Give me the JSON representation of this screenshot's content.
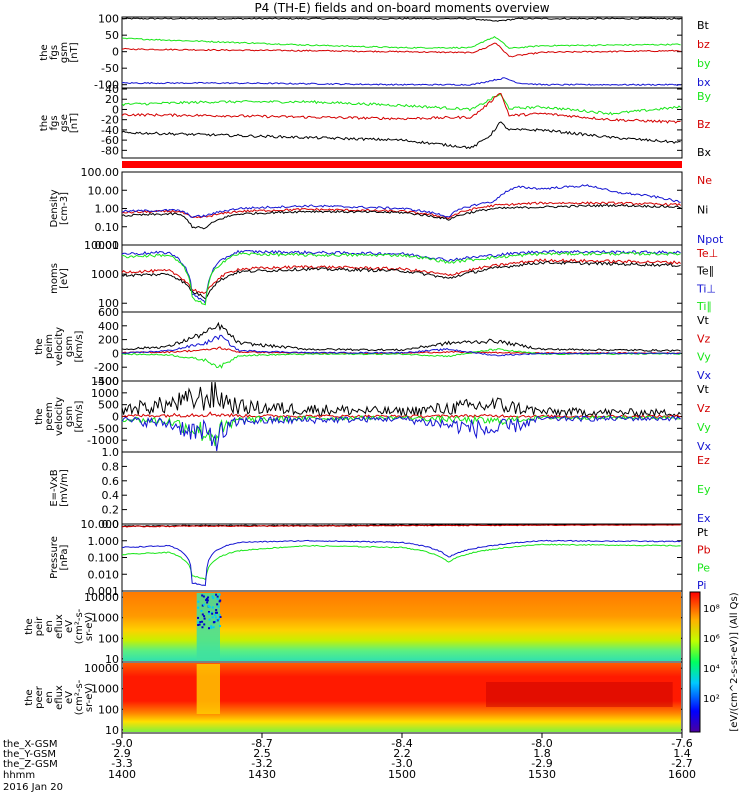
{
  "title": "P4 (TH-E) fields and on-board moments overview",
  "colors": {
    "black": "#000000",
    "red": "#d40000",
    "green": "#19e619",
    "blue": "#1414d2",
    "bar": "#ff0000"
  },
  "panels": [
    {
      "id": "fgs-gsm",
      "ylabel_lines": [
        "the",
        "fgs",
        "gsm",
        "[nT]"
      ],
      "scale": "linear",
      "ylim": [
        -110,
        105
      ],
      "ticks": [
        "100",
        "50",
        "0",
        "-50",
        "-100"
      ],
      "tick_values": [
        100,
        50,
        0,
        -50,
        -100
      ],
      "legend": [
        {
          "label": "Bt",
          "color": "#000000"
        },
        {
          "label": "bz",
          "color": "#d40000"
        },
        {
          "label": "by",
          "color": "#19e619"
        },
        {
          "label": "bx",
          "color": "#1414d2"
        }
      ]
    },
    {
      "id": "fgs-dsl",
      "ylabel_lines": [
        "the",
        "fgs",
        "gse",
        "[nT]"
      ],
      "scale": "linear",
      "ylim": [
        -95,
        42
      ],
      "ticks": [
        "40",
        "20",
        "0",
        "-20",
        "-40",
        "-60",
        "-80"
      ],
      "tick_values": [
        40,
        20,
        0,
        -20,
        -40,
        -60,
        -80
      ],
      "legend": [
        {
          "label": "By",
          "color": "#19e619"
        },
        {
          "label": "Bz",
          "color": "#d40000"
        },
        {
          "label": "Bx",
          "color": "#000000"
        }
      ]
    },
    {
      "id": "density",
      "ylabel_lines": [
        "Density",
        "[cm-3]"
      ],
      "scale": "log",
      "ylim": [
        0.01,
        100
      ],
      "ticks": [
        "100.00",
        "10.00",
        "1.00",
        "0.10",
        "0.01"
      ],
      "tick_values": [
        100,
        10,
        1,
        0.1,
        0.01
      ],
      "legend": [
        {
          "label": "Ne",
          "color": "#d40000"
        },
        {
          "label": "Ni",
          "color": "#000000"
        },
        {
          "label": "Npot",
          "color": "#1414d2"
        }
      ]
    },
    {
      "id": "temperature",
      "ylabel_lines": [
        "moms",
        "[eV]"
      ],
      "scale": "log",
      "ylim": [
        50,
        10000
      ],
      "ticks": [
        "10000",
        "1000",
        "100"
      ],
      "tick_values": [
        10000,
        1000,
        100
      ],
      "legend": [
        {
          "label": "Te⊥",
          "color": "#d40000"
        },
        {
          "label": "Te∥",
          "color": "#000000"
        },
        {
          "label": "Ti⊥",
          "color": "#1414d2"
        },
        {
          "label": "Ti∥",
          "color": "#19e619"
        }
      ]
    },
    {
      "id": "ion-velocity",
      "ylabel_lines": [
        "the",
        "peim",
        "velocity",
        "gsm",
        "[km/s]"
      ],
      "scale": "linear",
      "ylim": [
        -400,
        600
      ],
      "ticks": [
        "600",
        "400",
        "200",
        "0",
        "-200",
        "-400"
      ],
      "tick_values": [
        600,
        400,
        200,
        0,
        -200,
        -400
      ],
      "legend": [
        {
          "label": "Vt",
          "color": "#000000"
        },
        {
          "label": "Vz",
          "color": "#d40000"
        },
        {
          "label": "Vy",
          "color": "#19e619"
        },
        {
          "label": "Vx",
          "color": "#1414d2"
        }
      ]
    },
    {
      "id": "electron-velocity",
      "ylabel_lines": [
        "the",
        "peem",
        "velocity",
        "gsm",
        "[km/s]"
      ],
      "scale": "linear",
      "ylim": [
        -1500,
        1500
      ],
      "ticks": [
        "1500",
        "1000",
        "500",
        "0",
        "-500",
        "-1000"
      ],
      "tick_values": [
        1500,
        1000,
        500,
        0,
        -500,
        -1000
      ],
      "legend": [
        {
          "label": "Vt",
          "color": "#000000"
        },
        {
          "label": "Vz",
          "color": "#d40000"
        },
        {
          "label": "Vy",
          "color": "#19e619"
        },
        {
          "label": "Vx",
          "color": "#1414d2"
        }
      ]
    },
    {
      "id": "efield",
      "ylabel_lines": [
        "E=-VxB",
        "[mV/m]"
      ],
      "scale": "linear",
      "ylim": [
        0,
        1
      ],
      "ticks": [
        "1.0",
        "0.8",
        "0.6",
        "0.4",
        "0.2",
        "0.0"
      ],
      "tick_values": [
        1,
        0.8,
        0.6,
        0.4,
        0.2,
        0
      ],
      "legend": [
        {
          "label": "Ez",
          "color": "#d40000"
        },
        {
          "label": "Ey",
          "color": "#19e619"
        },
        {
          "label": "Ex",
          "color": "#1414d2"
        }
      ]
    },
    {
      "id": "pressure",
      "ylabel_lines": [
        "Pressure",
        "[nPa]"
      ],
      "scale": "log",
      "ylim": [
        0.001,
        10
      ],
      "ticks": [
        "10.000",
        "1.000",
        "0.100",
        "0.010",
        "0.001"
      ],
      "tick_values": [
        10,
        1,
        0.1,
        0.01,
        0.001
      ],
      "legend": [
        {
          "label": "Pt",
          "color": "#000000"
        },
        {
          "label": "Pb",
          "color": "#d40000"
        },
        {
          "label": "Pe",
          "color": "#19e619"
        },
        {
          "label": "Pi",
          "color": "#1414d2"
        }
      ]
    },
    {
      "id": "ion-spectrogram",
      "ylabel_lines": [
        "the",
        "peir",
        "en",
        "eflux",
        "eV",
        "(cm²-s-",
        "sr-eV)"
      ],
      "scale": "log",
      "ylim": [
        7,
        20000
      ],
      "ticks": [
        "10000",
        "1000",
        "100",
        "10"
      ],
      "tick_values": [
        10000,
        1000,
        100,
        10
      ],
      "legend": []
    },
    {
      "id": "electron-spectrogram",
      "ylabel_lines": [
        "the",
        "peer",
        "en",
        "eflux",
        "eV",
        "(cm²-s-",
        "sr-eV)"
      ],
      "scale": "log",
      "ylim": [
        7,
        20000
      ],
      "ticks": [
        "10000",
        "1000",
        "100",
        "10"
      ],
      "tick_values": [
        10000,
        1000,
        100,
        10
      ],
      "legend": []
    }
  ],
  "colorbar": {
    "label": "[eV/(cm^2-s-sr-eV)] (All Qs)",
    "ticks": [
      "10⁸",
      "10⁶",
      "10⁴",
      "10²"
    ]
  },
  "xaxis": {
    "rows": [
      {
        "name": "the_X-GSM",
        "values": [
          "-9.0",
          "-8.7",
          "-8.4",
          "-8.0",
          "-7.6"
        ]
      },
      {
        "name": "the_Y-GSM",
        "values": [
          "2.9",
          "2.5",
          "2.2",
          "1.8",
          "1.4"
        ]
      },
      {
        "name": "the_Z-GSM",
        "values": [
          "-3.3",
          "-3.2",
          "-3.0",
          "-2.9",
          "-2.7"
        ]
      },
      {
        "name": "hhmm",
        "values": [
          "1400",
          "1430",
          "1500",
          "1530",
          "1600"
        ]
      }
    ],
    "date": "2016 Jan 20"
  },
  "chart_data": {
    "type": "line",
    "title": "P4 (TH-E) fields and on-board moments overview",
    "x_unit": "hhmm",
    "x_range": [
      "1400",
      "1600"
    ],
    "x_ticks": [
      "1400",
      "1430",
      "1500",
      "1530",
      "1600"
    ],
    "date": "2016 Jan 20",
    "series": [
      {
        "panel": "fgs-gsm",
        "name": "Bt",
        "x": [
          1400,
          1420,
          1440,
          1500,
          1515,
          1520,
          1525,
          1530,
          1600
        ],
        "values": [
          100,
          100,
          100,
          100,
          100,
          92,
          100,
          100,
          100
        ]
      },
      {
        "panel": "fgs-gsm",
        "name": "bz",
        "x": [
          1400,
          1420,
          1440,
          1500,
          1515,
          1518,
          1520,
          1523,
          1530,
          1600
        ],
        "values": [
          8,
          5,
          3,
          0,
          -3,
          12,
          28,
          -15,
          -2,
          3
        ]
      },
      {
        "panel": "fgs-gsm",
        "name": "by",
        "x": [
          1400,
          1420,
          1440,
          1500,
          1515,
          1518,
          1520,
          1523,
          1530,
          1600
        ],
        "values": [
          40,
          30,
          20,
          12,
          12,
          35,
          45,
          10,
          18,
          22
        ]
      },
      {
        "panel": "fgs-gsm",
        "name": "bx",
        "x": [
          1400,
          1420,
          1440,
          1500,
          1515,
          1520,
          1522,
          1525,
          1530,
          1600
        ],
        "values": [
          -95,
          -95,
          -97,
          -100,
          -100,
          -85,
          -80,
          -95,
          -100,
          -100
        ]
      },
      {
        "panel": "fgs-dsl",
        "name": "By",
        "x": [
          1400,
          1420,
          1440,
          1500,
          1515,
          1519,
          1521,
          1523,
          1530,
          1545,
          1600
        ],
        "values": [
          10,
          15,
          15,
          8,
          0,
          20,
          30,
          2,
          5,
          -8,
          5
        ]
      },
      {
        "panel": "fgs-dsl",
        "name": "Bz",
        "x": [
          1400,
          1420,
          1440,
          1500,
          1515,
          1519,
          1521,
          1523,
          1530,
          1545,
          1600
        ],
        "values": [
          -10,
          -12,
          -15,
          -18,
          -15,
          15,
          35,
          -12,
          -8,
          -20,
          -25
        ]
      },
      {
        "panel": "fgs-dsl",
        "name": "Bx",
        "x": [
          1400,
          1420,
          1440,
          1500,
          1515,
          1519,
          1521,
          1523,
          1530,
          1545,
          1600
        ],
        "values": [
          -45,
          -50,
          -55,
          -60,
          -75,
          -50,
          -25,
          -40,
          -40,
          -55,
          -65
        ]
      },
      {
        "panel": "density",
        "name": "Ne",
        "x": [
          1400,
          1410,
          1412,
          1415,
          1418,
          1425,
          1440,
          1500,
          1510,
          1520,
          1530,
          1545,
          1600
        ],
        "values": [
          0.6,
          0.7,
          0.7,
          0.3,
          0.35,
          0.7,
          0.9,
          0.7,
          0.3,
          1.5,
          2.0,
          2.0,
          1.6
        ]
      },
      {
        "panel": "density",
        "name": "Ni",
        "x": [
          1400,
          1410,
          1412,
          1415,
          1418,
          1425,
          1440,
          1500,
          1510,
          1520,
          1530,
          1545,
          1600
        ],
        "values": [
          0.4,
          0.5,
          0.5,
          0.1,
          0.08,
          0.5,
          0.7,
          0.6,
          0.25,
          1.0,
          1.2,
          1.5,
          1.2
        ]
      },
      {
        "panel": "density",
        "name": "Npot",
        "x": [
          1400,
          1410,
          1412,
          1415,
          1418,
          1425,
          1440,
          1500,
          1510,
          1520,
          1525,
          1530,
          1540,
          1545,
          1600
        ],
        "values": [
          0.7,
          0.8,
          0.8,
          0.35,
          0.4,
          1.0,
          1.4,
          1.0,
          0.35,
          2.5,
          15,
          12,
          18,
          8,
          2.0
        ]
      },
      {
        "panel": "temperature",
        "name": "Te⊥",
        "x": [
          1400,
          1410,
          1415,
          1418,
          1425,
          1440,
          1500,
          1510,
          1530,
          1600
        ],
        "values": [
          1200,
          1300,
          300,
          200,
          1500,
          1800,
          1500,
          900,
          3000,
          2500
        ]
      },
      {
        "panel": "temperature",
        "name": "Te∥",
        "x": [
          1400,
          1410,
          1415,
          1418,
          1425,
          1440,
          1500,
          1510,
          1530,
          1600
        ],
        "values": [
          900,
          1000,
          250,
          150,
          1200,
          1500,
          1300,
          700,
          2500,
          2000
        ]
      },
      {
        "panel": "temperature",
        "name": "Ti⊥",
        "x": [
          1400,
          1410,
          1415,
          1418,
          1425,
          1440,
          1500,
          1510,
          1530,
          1600
        ],
        "values": [
          5000,
          5500,
          200,
          100,
          6000,
          5500,
          5000,
          3000,
          6000,
          5500
        ]
      },
      {
        "panel": "temperature",
        "name": "Ti∥",
        "x": [
          1400,
          1410,
          1415,
          1418,
          1425,
          1440,
          1500,
          1510,
          1530,
          1600
        ],
        "values": [
          4000,
          4500,
          150,
          80,
          5000,
          4500,
          4500,
          2500,
          5000,
          5000
        ]
      },
      {
        "panel": "ion-velocity",
        "name": "Vt",
        "x": [
          1400,
          1410,
          1418,
          1421,
          1425,
          1440,
          1500,
          1510,
          1520,
          1530,
          1600
        ],
        "values": [
          60,
          100,
          300,
          400,
          150,
          60,
          50,
          150,
          180,
          60,
          40
        ]
      },
      {
        "panel": "ion-velocity",
        "name": "Vz",
        "x": [
          1400,
          1410,
          1418,
          1421,
          1425,
          1440,
          1500,
          1510,
          1520,
          1530,
          1600
        ],
        "values": [
          10,
          20,
          50,
          80,
          20,
          5,
          5,
          20,
          10,
          5,
          5
        ]
      },
      {
        "panel": "ion-velocity",
        "name": "Vy",
        "x": [
          1400,
          1410,
          1418,
          1421,
          1425,
          1440,
          1500,
          1510,
          1520,
          1530,
          1600
        ],
        "values": [
          -10,
          -20,
          -100,
          -200,
          -30,
          -10,
          -10,
          -40,
          60,
          -10,
          -5
        ]
      },
      {
        "panel": "ion-velocity",
        "name": "Vx",
        "x": [
          1400,
          1410,
          1418,
          1421,
          1425,
          1440,
          1500,
          1510,
          1520,
          1530,
          1600
        ],
        "values": [
          0,
          40,
          150,
          250,
          40,
          10,
          10,
          60,
          -30,
          0,
          0
        ]
      },
      {
        "panel": "electron-velocity",
        "name": "Vt",
        "x": [
          1400,
          1410,
          1420,
          1425,
          1440,
          1500,
          1520,
          1530,
          1600
        ],
        "values": [
          300,
          500,
          900,
          400,
          300,
          200,
          500,
          200,
          150
        ]
      },
      {
        "panel": "electron-velocity",
        "name": "Vz",
        "x": [
          1400,
          1410,
          1420,
          1425,
          1440,
          1500,
          1520,
          1530,
          1600
        ],
        "values": [
          20,
          50,
          100,
          30,
          20,
          10,
          30,
          10,
          10
        ]
      },
      {
        "panel": "electron-velocity",
        "name": "Vy",
        "x": [
          1400,
          1410,
          1420,
          1425,
          1440,
          1500,
          1520,
          1530,
          1600
        ],
        "values": [
          -100,
          -200,
          -800,
          -150,
          -80,
          -50,
          -200,
          -50,
          -40
        ]
      },
      {
        "panel": "electron-velocity",
        "name": "Vx",
        "x": [
          1400,
          1410,
          1420,
          1425,
          1440,
          1500,
          1520,
          1530,
          1600
        ],
        "values": [
          -150,
          -300,
          -900,
          -200,
          -150,
          -100,
          -600,
          -100,
          -80
        ]
      },
      {
        "panel": "pressure",
        "name": "Pt",
        "x": [
          1400,
          1420,
          1440,
          1500,
          1530,
          1600
        ],
        "values": [
          7.5,
          8,
          8,
          8.5,
          9,
          9.5
        ]
      },
      {
        "panel": "pressure",
        "name": "Pb",
        "x": [
          1400,
          1420,
          1440,
          1500,
          1530,
          1600
        ],
        "values": [
          7,
          7.5,
          7.5,
          8,
          8.5,
          9
        ]
      },
      {
        "panel": "pressure",
        "name": "Pe",
        "x": [
          1400,
          1410,
          1415,
          1418,
          1425,
          1440,
          1500,
          1510,
          1530,
          1600
        ],
        "values": [
          0.15,
          0.2,
          0.008,
          0.005,
          0.25,
          0.5,
          0.4,
          0.05,
          0.6,
          0.5
        ]
      },
      {
        "panel": "pressure",
        "name": "Pi",
        "x": [
          1400,
          1410,
          1415,
          1418,
          1425,
          1440,
          1500,
          1510,
          1530,
          1600
        ],
        "values": [
          0.4,
          0.5,
          0.003,
          0.002,
          0.8,
          1.0,
          0.8,
          0.1,
          1.0,
          0.9
        ]
      }
    ]
  }
}
